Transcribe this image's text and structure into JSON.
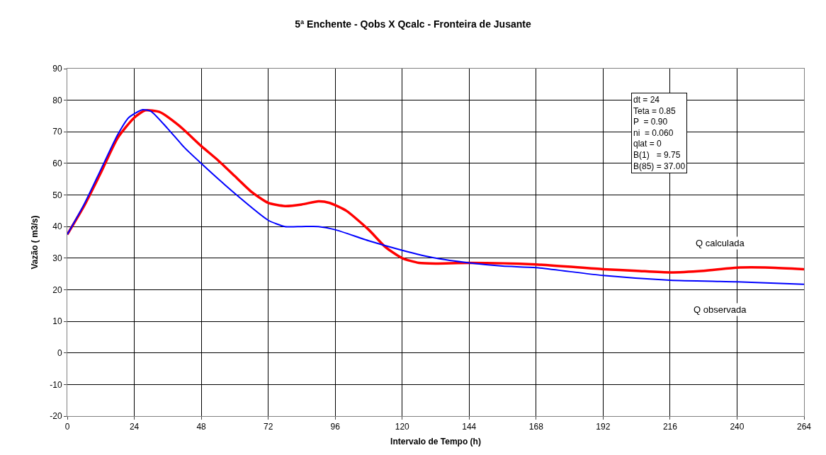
{
  "chart_data": {
    "type": "line",
    "title": "5ª Enchente - Qobs X Qcalc - Fronteira de Jusante",
    "xlabel": "Intervalo de Tempo (h)",
    "ylabel": "Vazão ( m3/s)",
    "xlim": [
      0,
      264
    ],
    "xticks": [
      0,
      24,
      48,
      72,
      96,
      120,
      144,
      168,
      192,
      216,
      240,
      264
    ],
    "ylim": [
      -20,
      90
    ],
    "yticks": [
      -20,
      -10,
      0,
      10,
      20,
      30,
      40,
      50,
      60,
      70,
      80,
      90
    ],
    "grid": true,
    "legend": false,
    "marker": "none",
    "line_style": "solid",
    "annotations": [
      "dt = 24\nTeta = 0.85\nP  = 0.90\nni  = 0.060\nqlat = 0\nB(1)   = 9.75\nB(85) = 37.00"
    ],
    "series": [
      {
        "name": "Q calculada",
        "color": "#ff0000",
        "x": [
          0,
          6,
          12,
          18,
          24,
          28,
          33,
          40,
          48,
          54,
          60,
          66,
          72,
          78,
          84,
          90,
          94,
          100,
          108,
          114,
          120,
          126,
          132,
          144,
          168,
          192,
          204,
          216,
          228,
          240,
          252,
          264
        ],
        "values": [
          37.5,
          46.5,
          57,
          68,
          74.5,
          76.8,
          76.3,
          72,
          65.5,
          61,
          56,
          51,
          47.5,
          46.5,
          47,
          48,
          47.5,
          45,
          39,
          33.5,
          30,
          28.5,
          28.3,
          28.5,
          28,
          26.5,
          26,
          25.5,
          26,
          27,
          27,
          26.5
        ]
      },
      {
        "name": "Q observada",
        "color": "#0000ff",
        "x": [
          0,
          6,
          12,
          18,
          22,
          27,
          30,
          36,
          42,
          48,
          60,
          72,
          78,
          84,
          90,
          96,
          108,
          120,
          132,
          144,
          156,
          168,
          192,
          216,
          240,
          264
        ],
        "values": [
          37.5,
          47,
          58,
          69,
          74.5,
          77,
          76.5,
          71,
          65,
          60,
          50.5,
          42,
          40,
          40,
          40,
          39,
          35.5,
          32.5,
          30,
          28.5,
          27.5,
          27,
          24.5,
          23,
          22.5,
          21.7
        ]
      }
    ]
  }
}
